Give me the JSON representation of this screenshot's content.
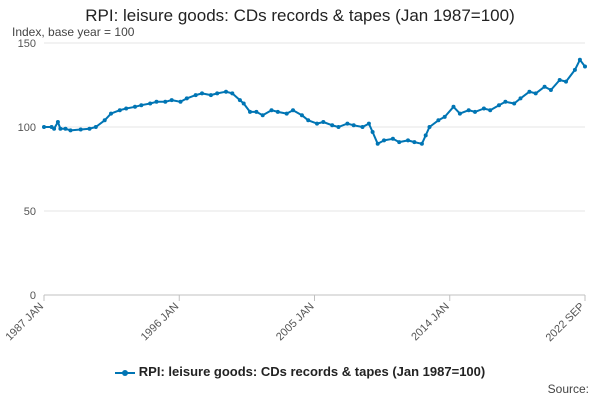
{
  "chart_data": {
    "type": "line",
    "title": "RPI: leisure goods: CDs records & tapes (Jan 1987=100)",
    "ylabel": "Index, base year = 100",
    "xlabel": "",
    "ylim": [
      0,
      150
    ],
    "y_ticks": [
      0,
      50,
      100,
      150
    ],
    "x_tick_labels": [
      "1987 JAN",
      "1996 JAN",
      "2005 JAN",
      "2014 JAN",
      "2022 SEP"
    ],
    "grid": true,
    "legend_position": "bottom",
    "series": [
      {
        "name": "RPI: leisure goods: CDs records & tapes (Jan 1987=100)",
        "color": "#0075b4",
        "points": [
          [
            "1987-01",
            100
          ],
          [
            "1987-07",
            100
          ],
          [
            "1987-09",
            99
          ],
          [
            "1987-12",
            103
          ],
          [
            "1988-02",
            99
          ],
          [
            "1988-06",
            99
          ],
          [
            "1988-10",
            98
          ],
          [
            "1989-06",
            98.5
          ],
          [
            "1990-01",
            99
          ],
          [
            "1990-06",
            100
          ],
          [
            "1991-01",
            104
          ],
          [
            "1991-06",
            108
          ],
          [
            "1992-01",
            110
          ],
          [
            "1992-06",
            111
          ],
          [
            "1993-01",
            112
          ],
          [
            "1993-06",
            113
          ],
          [
            "1994-01",
            114
          ],
          [
            "1994-06",
            115
          ],
          [
            "1995-01",
            115
          ],
          [
            "1995-06",
            116
          ],
          [
            "1996-01",
            115
          ],
          [
            "1996-06",
            117
          ],
          [
            "1997-01",
            119
          ],
          [
            "1997-06",
            120
          ],
          [
            "1998-01",
            119
          ],
          [
            "1998-06",
            120
          ],
          [
            "1999-01",
            121
          ],
          [
            "1999-06",
            120
          ],
          [
            "1999-12",
            116
          ],
          [
            "2000-03",
            114
          ],
          [
            "2000-08",
            109
          ],
          [
            "2001-01",
            109
          ],
          [
            "2001-06",
            107
          ],
          [
            "2002-01",
            110
          ],
          [
            "2002-06",
            109
          ],
          [
            "2003-01",
            108
          ],
          [
            "2003-06",
            110
          ],
          [
            "2004-01",
            107
          ],
          [
            "2004-06",
            104
          ],
          [
            "2005-01",
            102
          ],
          [
            "2005-06",
            103
          ],
          [
            "2006-01",
            101
          ],
          [
            "2006-06",
            100
          ],
          [
            "2007-01",
            102
          ],
          [
            "2007-06",
            101
          ],
          [
            "2008-01",
            100
          ],
          [
            "2008-06",
            102
          ],
          [
            "2008-09",
            97
          ],
          [
            "2009-01",
            90
          ],
          [
            "2009-06",
            92
          ],
          [
            "2010-01",
            93
          ],
          [
            "2010-06",
            91
          ],
          [
            "2011-01",
            92
          ],
          [
            "2011-06",
            91
          ],
          [
            "2011-12",
            90
          ],
          [
            "2012-03",
            95
          ],
          [
            "2012-06",
            100
          ],
          [
            "2013-01",
            104
          ],
          [
            "2013-06",
            106
          ],
          [
            "2014-01",
            112
          ],
          [
            "2014-06",
            108
          ],
          [
            "2015-01",
            110
          ],
          [
            "2015-06",
            109
          ],
          [
            "2016-01",
            111
          ],
          [
            "2016-06",
            110
          ],
          [
            "2017-01",
            113
          ],
          [
            "2017-06",
            115
          ],
          [
            "2018-01",
            114
          ],
          [
            "2018-06",
            117
          ],
          [
            "2019-01",
            121
          ],
          [
            "2019-06",
            120
          ],
          [
            "2020-01",
            124
          ],
          [
            "2020-06",
            122
          ],
          [
            "2021-01",
            128
          ],
          [
            "2021-06",
            127
          ],
          [
            "2022-01",
            134
          ],
          [
            "2022-05",
            140
          ],
          [
            "2022-09",
            136
          ]
        ]
      }
    ]
  },
  "source_label": "Source:"
}
